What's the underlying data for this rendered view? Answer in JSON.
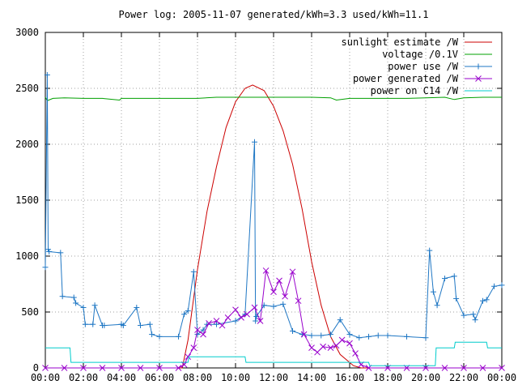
{
  "chart_data": {
    "type": "line",
    "title": "Power log: 2005-11-07 generated/kWh=3.3 used/kWh=11.1",
    "xlabel": "",
    "ylabel": "",
    "xlim": [
      0,
      24
    ],
    "ylim": [
      0,
      3000
    ],
    "grid": true,
    "legend_position": "top-right",
    "x_tick_labels": [
      "00:00",
      "02:00",
      "04:00",
      "06:00",
      "08:00",
      "10:00",
      "12:00",
      "14:00",
      "16:00",
      "18:00",
      "20:00",
      "22:00",
      "00:00"
    ],
    "y_ticks": [
      0,
      500,
      1000,
      1500,
      2000,
      2500,
      3000
    ],
    "series": [
      {
        "name": "sunlight estimate /W",
        "color": "#cc0000",
        "style": "line",
        "x": [
          0,
          7.2,
          7.5,
          8,
          8.5,
          9,
          9.5,
          10,
          10.5,
          10.9,
          11.5,
          12,
          12.5,
          13,
          13.5,
          14,
          14.5,
          15,
          15.5,
          16.2,
          16.6,
          24
        ],
        "y": [
          0,
          0,
          250,
          880,
          1400,
          1800,
          2150,
          2380,
          2500,
          2530,
          2480,
          2340,
          2120,
          1820,
          1420,
          950,
          560,
          280,
          120,
          20,
          0,
          0
        ]
      },
      {
        "name": "voltage /0.1V",
        "color": "#00a000",
        "style": "line",
        "x": [
          0,
          0.1,
          0.4,
          1,
          2,
          3,
          3.9,
          4,
          4.5,
          5,
          6,
          7,
          8,
          9,
          10,
          11,
          12,
          13,
          14,
          15,
          15.3,
          16,
          17,
          18,
          19,
          20,
          21,
          21.5,
          22,
          23,
          24
        ],
        "y": [
          2420,
          2390,
          2410,
          2415,
          2410,
          2410,
          2395,
          2410,
          2410,
          2410,
          2410,
          2410,
          2410,
          2420,
          2420,
          2420,
          2420,
          2420,
          2420,
          2415,
          2395,
          2410,
          2410,
          2410,
          2410,
          2415,
          2420,
          2400,
          2415,
          2420,
          2420
        ]
      },
      {
        "name": "power use /W",
        "color": "#1f77c4",
        "style": "linepoints",
        "x": [
          0,
          0.1,
          0.15,
          0.2,
          0.8,
          0.9,
          1.5,
          1.6,
          2,
          2.1,
          2.5,
          2.6,
          3,
          3.1,
          4,
          4.1,
          4.8,
          5,
          5.5,
          5.6,
          6,
          7,
          7.3,
          7.5,
          7.8,
          8,
          8.3,
          8.5,
          9,
          10,
          10.5,
          11,
          11.05,
          11.1,
          11.5,
          12,
          12.5,
          13,
          13.5,
          14,
          14.5,
          15,
          15.5,
          16,
          16.5,
          17,
          17.5,
          18,
          19,
          20,
          20.2,
          20.4,
          20.6,
          21,
          21.5,
          21.6,
          22,
          22.5,
          22.6,
          23,
          23.2,
          23.6,
          24
        ],
        "y": [
          900,
          2620,
          1060,
          1040,
          1030,
          640,
          630,
          580,
          540,
          390,
          390,
          560,
          380,
          380,
          390,
          380,
          540,
          380,
          390,
          300,
          280,
          280,
          480,
          510,
          860,
          300,
          340,
          390,
          390,
          420,
          480,
          2020,
          420,
          460,
          560,
          550,
          570,
          330,
          300,
          290,
          290,
          300,
          430,
          300,
          270,
          280,
          290,
          290,
          280,
          270,
          1050,
          680,
          560,
          800,
          820,
          620,
          470,
          480,
          430,
          600,
          610,
          730,
          740
        ]
      },
      {
        "name": "power generated /W",
        "color": "#9900cc",
        "style": "points",
        "x": [
          0,
          1,
          2,
          3,
          4,
          5,
          6,
          7,
          7.3,
          7.5,
          7.8,
          8,
          8.3,
          8.6,
          9,
          9.3,
          9.6,
          10,
          10.3,
          10.6,
          11,
          11.3,
          11.6,
          12,
          12.3,
          12.6,
          13,
          13.3,
          13.6,
          14,
          14.3,
          14.6,
          15,
          15.3,
          15.6,
          16,
          16.3,
          16.6,
          17,
          18,
          19,
          20,
          21,
          22,
          23,
          24
        ],
        "y": [
          0,
          0,
          0,
          0,
          0,
          0,
          0,
          0,
          30,
          100,
          180,
          340,
          300,
          400,
          420,
          380,
          450,
          520,
          450,
          480,
          540,
          420,
          870,
          680,
          780,
          640,
          860,
          600,
          300,
          180,
          140,
          190,
          180,
          200,
          250,
          220,
          130,
          30,
          0,
          0,
          0,
          0,
          0,
          0,
          0,
          0
        ]
      },
      {
        "name": "power on C14 /W",
        "color": "#00cccc",
        "style": "line",
        "x": [
          0,
          1.3,
          1.35,
          7.5,
          7.55,
          10.5,
          10.55,
          17,
          17.05,
          20.5,
          20.55,
          21.5,
          21.55,
          23.2,
          23.25,
          24
        ],
        "y": [
          180,
          180,
          50,
          50,
          100,
          100,
          50,
          50,
          20,
          20,
          180,
          180,
          230,
          230,
          180,
          180
        ]
      }
    ]
  }
}
